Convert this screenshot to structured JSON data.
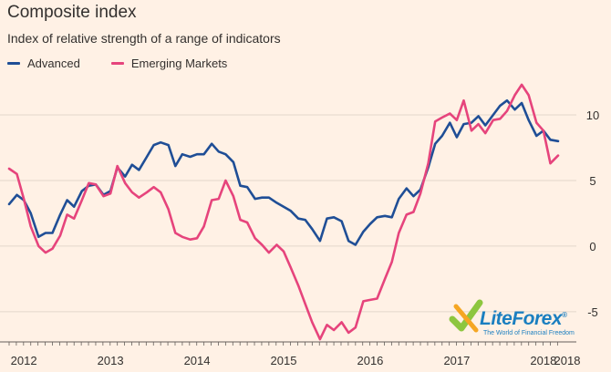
{
  "header": {
    "title": "Composite index",
    "subtitle": "Index of relative strength of a range of indicators"
  },
  "colors": {
    "advanced": "#1f4e96",
    "emerging": "#e6447c",
    "grid": "#e3d7cc",
    "background": "#fff1e5",
    "text": "#33302e",
    "watermark": "#1b7fc0",
    "watermark_accent": "#8dc63f"
  },
  "watermark": {
    "brand": "LiteForex",
    "tagline": "The World of Financial Freedom",
    "registered": "®"
  },
  "chart_data": {
    "type": "line",
    "title": "Composite index",
    "subtitle": "Index of relative strength of a range of indicators",
    "xlabel": "",
    "ylabel": "",
    "x_range": [
      2011.83,
      2018.17
    ],
    "ylim": [
      -7.3,
      12.5
    ],
    "yticks": [
      10,
      5,
      0,
      -5
    ],
    "ytick_labels": [
      "10",
      "5",
      "0",
      "-5"
    ],
    "xticks": [
      2012,
      2013,
      2014,
      2015,
      2016,
      2017,
      2018,
      2018.17
    ],
    "xtick_labels": [
      "2012",
      "2013",
      "2014",
      "2015",
      "2016",
      "2017",
      "2018",
      "2018"
    ],
    "legend": "top-left",
    "grid": "horizontal",
    "series": [
      {
        "name": "Advanced",
        "color": "#1f4e96",
        "x": [
          2011.83,
          2011.92,
          2012.0,
          2012.08,
          2012.17,
          2012.25,
          2012.33,
          2012.42,
          2012.5,
          2012.58,
          2012.67,
          2012.75,
          2012.83,
          2012.92,
          2013.0,
          2013.08,
          2013.17,
          2013.25,
          2013.33,
          2013.42,
          2013.5,
          2013.58,
          2013.67,
          2013.75,
          2013.83,
          2013.92,
          2014.0,
          2014.08,
          2014.17,
          2014.25,
          2014.33,
          2014.42,
          2014.5,
          2014.58,
          2014.67,
          2014.75,
          2014.83,
          2014.92,
          2015.0,
          2015.08,
          2015.17,
          2015.25,
          2015.33,
          2015.42,
          2015.5,
          2015.58,
          2015.67,
          2015.75,
          2015.83,
          2015.92,
          2016.0,
          2016.08,
          2016.17,
          2016.25,
          2016.33,
          2016.42,
          2016.5,
          2016.58,
          2016.67,
          2016.75,
          2016.83,
          2016.92,
          2017.0,
          2017.08,
          2017.17,
          2017.25,
          2017.33,
          2017.42,
          2017.5,
          2017.58,
          2017.67,
          2017.75,
          2017.83,
          2017.92,
          2018.0,
          2018.08,
          2018.17
        ],
        "values": [
          3.2,
          3.9,
          3.5,
          2.5,
          0.7,
          1.0,
          1.0,
          2.4,
          3.5,
          3.0,
          4.2,
          4.6,
          4.7,
          3.9,
          4.2,
          6.0,
          5.3,
          6.2,
          5.8,
          6.8,
          7.7,
          7.9,
          7.7,
          6.1,
          7.0,
          6.8,
          7.0,
          7.0,
          7.8,
          7.2,
          7.0,
          6.4,
          4.6,
          4.5,
          3.6,
          3.7,
          3.7,
          3.3,
          3.0,
          2.7,
          2.1,
          2.0,
          1.3,
          0.4,
          2.1,
          2.2,
          1.9,
          0.4,
          0.1,
          1.1,
          1.7,
          2.2,
          2.3,
          2.2,
          3.6,
          4.4,
          3.8,
          4.3,
          6.0,
          7.8,
          8.4,
          9.4,
          8.3,
          9.3,
          9.4,
          9.9,
          9.2,
          10.0,
          10.7,
          11.1,
          10.4,
          10.9,
          9.6,
          8.4,
          8.8,
          8.1,
          8.0
        ]
      },
      {
        "name": "Emerging Markets",
        "color": "#e6447c",
        "x": [
          2011.83,
          2011.92,
          2012.0,
          2012.08,
          2012.17,
          2012.25,
          2012.33,
          2012.42,
          2012.5,
          2012.58,
          2012.67,
          2012.75,
          2012.83,
          2012.92,
          2013.0,
          2013.08,
          2013.17,
          2013.25,
          2013.33,
          2013.42,
          2013.5,
          2013.58,
          2013.67,
          2013.75,
          2013.83,
          2013.92,
          2014.0,
          2014.08,
          2014.17,
          2014.25,
          2014.33,
          2014.42,
          2014.5,
          2014.58,
          2014.67,
          2014.75,
          2014.83,
          2014.92,
          2015.0,
          2015.08,
          2015.17,
          2015.25,
          2015.33,
          2015.42,
          2015.5,
          2015.58,
          2015.67,
          2015.75,
          2015.83,
          2015.92,
          2016.0,
          2016.08,
          2016.17,
          2016.25,
          2016.33,
          2016.42,
          2016.5,
          2016.58,
          2016.67,
          2016.75,
          2016.83,
          2016.92,
          2017.0,
          2017.08,
          2017.17,
          2017.25,
          2017.33,
          2017.42,
          2017.5,
          2017.58,
          2017.67,
          2017.75,
          2017.83,
          2017.92,
          2018.0,
          2018.08,
          2018.17
        ],
        "values": [
          5.9,
          5.5,
          3.6,
          1.5,
          0.0,
          -0.5,
          -0.2,
          0.8,
          2.4,
          2.1,
          3.5,
          4.8,
          4.7,
          3.8,
          4.0,
          6.1,
          4.8,
          4.1,
          3.7,
          4.1,
          4.5,
          4.1,
          2.8,
          1.0,
          0.7,
          0.5,
          0.6,
          1.5,
          3.5,
          3.6,
          5.0,
          3.8,
          2.0,
          1.8,
          0.6,
          0.1,
          -0.5,
          0.1,
          -0.4,
          -1.6,
          -3.0,
          -4.4,
          -5.8,
          -7.1,
          -6.0,
          -6.4,
          -5.8,
          -6.6,
          -6.2,
          -4.2,
          -4.1,
          -4.0,
          -2.5,
          -1.2,
          1.0,
          2.4,
          2.6,
          4.0,
          6.3,
          9.5,
          9.8,
          10.1,
          9.6,
          11.1,
          8.8,
          9.3,
          8.6,
          9.6,
          9.7,
          10.3,
          11.5,
          12.3,
          11.5,
          9.4,
          8.8,
          6.3,
          6.9
        ]
      }
    ]
  }
}
